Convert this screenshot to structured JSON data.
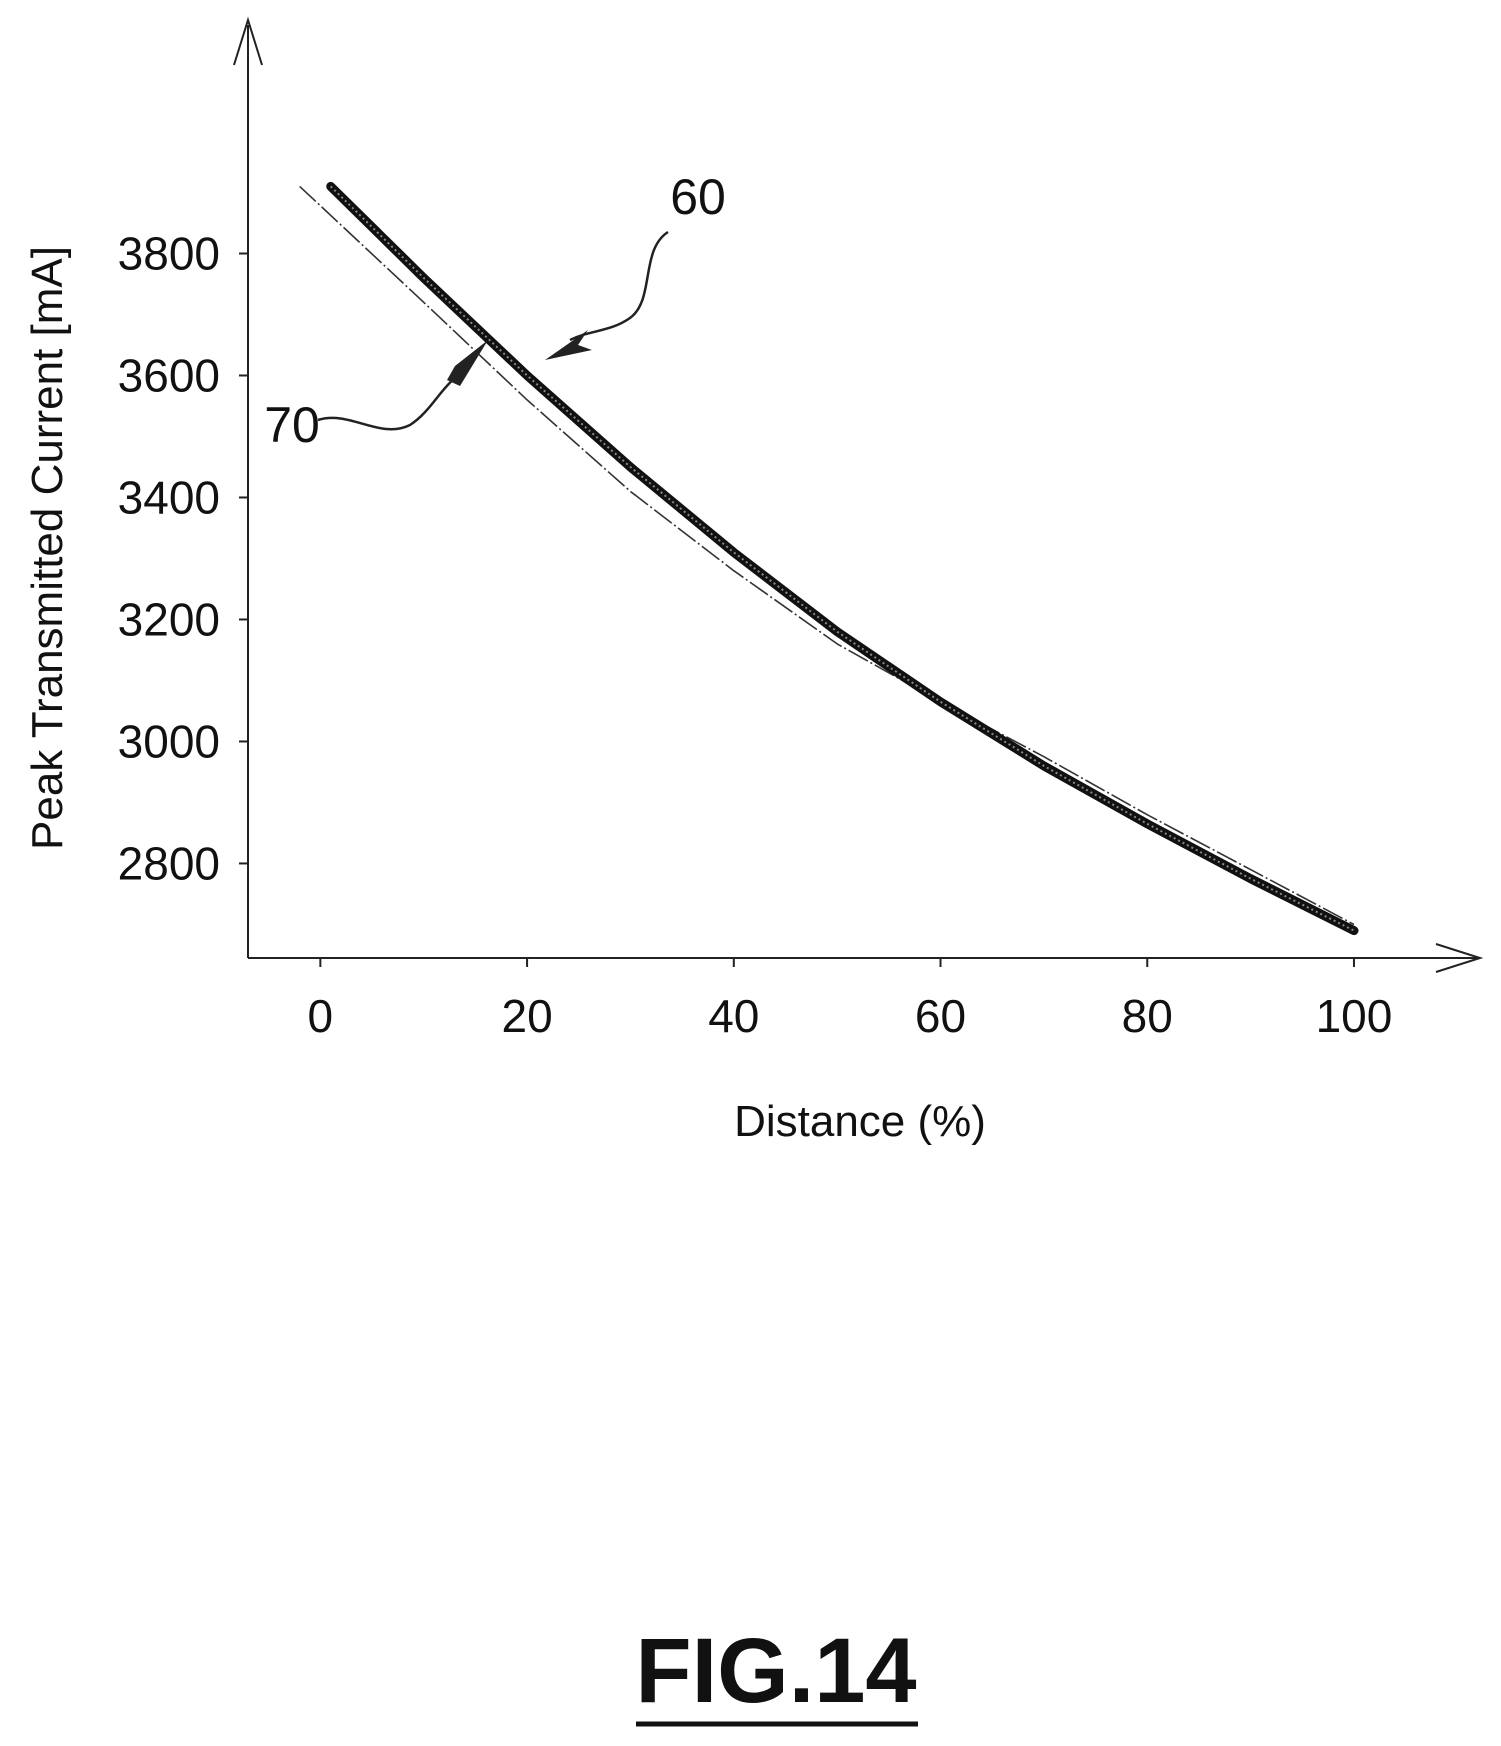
{
  "chart_data": {
    "type": "line",
    "title": "",
    "xlabel": "Distance (%)",
    "ylabel": "Peak Transmitted Current  [mA]",
    "x_ticks": [
      "0",
      "20",
      "40",
      "60",
      "80",
      "100"
    ],
    "y_ticks": [
      "2800",
      "3000",
      "3200",
      "3400",
      "3600",
      "3800"
    ],
    "xlim": [
      -7,
      112
    ],
    "ylim": [
      2645,
      4150
    ],
    "grid": false,
    "legend": "none",
    "series": [
      {
        "ref": "60",
        "style": "thick",
        "x": [
          1,
          10,
          20,
          30,
          40,
          50,
          60,
          70,
          80,
          90,
          100
        ],
        "y": [
          3910,
          3760,
          3600,
          3450,
          3310,
          3180,
          3065,
          2960,
          2865,
          2775,
          2690
        ]
      },
      {
        "ref": "70",
        "style": "thin",
        "x": [
          -2,
          10,
          20,
          30,
          40,
          50,
          60,
          70,
          80,
          90,
          100
        ],
        "y": [
          3910,
          3720,
          3560,
          3410,
          3280,
          3160,
          3065,
          2975,
          2880,
          2790,
          2700
        ]
      }
    ],
    "callouts": [
      {
        "label": "60",
        "points_to_series": "60"
      },
      {
        "label": "70",
        "points_to_series": "70"
      }
    ]
  },
  "figure_label": "FIG.14"
}
